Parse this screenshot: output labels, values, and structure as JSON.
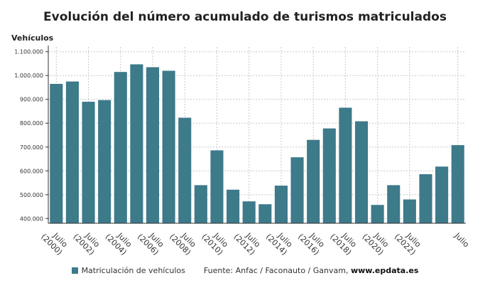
{
  "chart_data": {
    "type": "bar",
    "title": "Evolución del número acumulado de turismos matriculados",
    "ylabel": "Vehículos",
    "xlabel": "",
    "ylim": [
      380000,
      1120000
    ],
    "y_ticks": [
      400000,
      500000,
      600000,
      700000,
      800000,
      900000,
      1000000,
      1100000
    ],
    "y_tick_labels": [
      "400.000",
      "500.000",
      "600.000",
      "700.000",
      "800.000",
      "900.000",
      "1.000.000",
      "1.100.000"
    ],
    "categories": [
      "Julio (2000)",
      "",
      "Julio (2002)",
      "",
      "Julio (2004)",
      "",
      "Julio (2006)",
      "",
      "Julio (2008)",
      "",
      "Julio (2010)",
      "",
      "Julio (2012)",
      "",
      "Julio (2014)",
      "",
      "Julio (2016)",
      "",
      "Julio (2018)",
      "",
      "Julio (2020)",
      "",
      "Julio (2022)",
      "",
      "",
      "Julio"
    ],
    "series": [
      {
        "name": "Matriculación de vehículos",
        "color": "#3d7a8a",
        "values": [
          965000,
          975000,
          890000,
          897000,
          1015000,
          1047000,
          1035000,
          1020000,
          823000,
          540000,
          686000,
          521000,
          472000,
          460000,
          538000,
          657000,
          730000,
          778000,
          865000,
          808000,
          457000,
          540000,
          480000,
          586000,
          618000,
          708000
        ]
      }
    ],
    "grid": true,
    "legend_position": "bottom"
  },
  "legend": {
    "series_label": "Matriculación de vehículos",
    "source_label": "Fuente: Anfac / Faconauto / Ganvam, ",
    "source_site": "www.epdata.es"
  },
  "colors": {
    "bar": "#3d7a8a",
    "grid": "#c8c8c8",
    "axis": "#333333"
  }
}
